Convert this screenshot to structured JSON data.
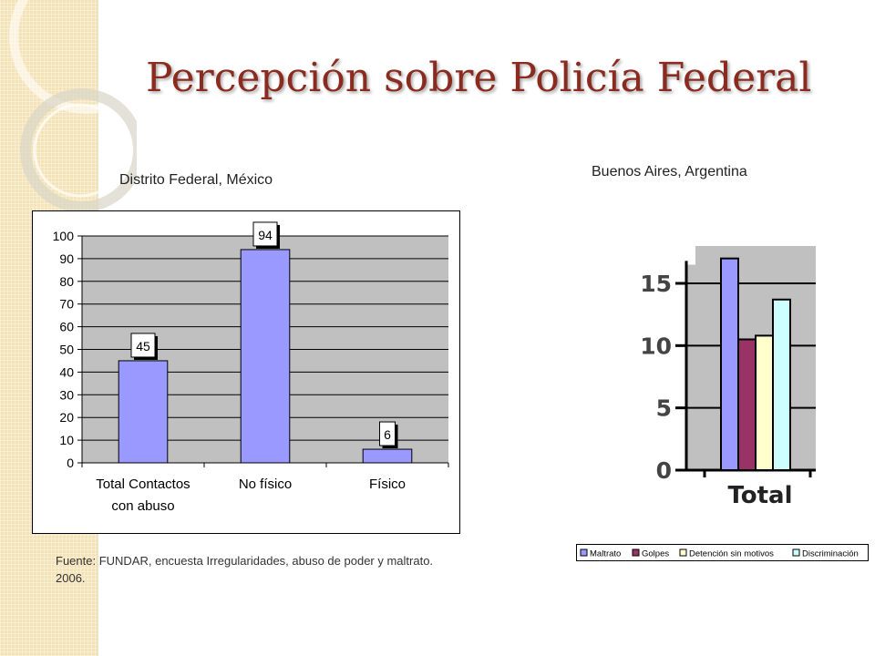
{
  "slide": {
    "title": "Percepción sobre Policía Federal",
    "source": "Fuente: FUNDAR, encuesta Irregularidades, abuso de poder y maltrato. 2006."
  },
  "chart_data": [
    {
      "type": "bar",
      "title": "Distrito Federal, México",
      "categories": [
        "Total Contactos con abuso",
        "No físico",
        "Físico"
      ],
      "values": [
        45,
        94,
        6
      ],
      "data_labels": [
        "45",
        "94",
        "6"
      ],
      "ylim": [
        0,
        100
      ],
      "yticks": [
        0,
        10,
        20,
        30,
        40,
        50,
        60,
        70,
        80,
        90,
        100
      ],
      "grid": true,
      "colors": {
        "bar": "#9999ff",
        "plot_bg": "#c0c0c0",
        "border": "#000000"
      }
    },
    {
      "type": "bar",
      "title": "Buenos Aires, Argentina",
      "categories": [
        "Total"
      ],
      "series": [
        {
          "name": "Maltrato",
          "values": [
            17
          ],
          "color": "#9999ff"
        },
        {
          "name": "Golpes",
          "values": [
            10.5
          ],
          "color": "#993366"
        },
        {
          "name": "Detención sin motivos",
          "values": [
            10.8
          ],
          "color": "#ffffcc"
        },
        {
          "name": "Discriminación",
          "values": [
            13.7
          ],
          "color": "#ccffff"
        }
      ],
      "yticks": [
        0,
        5,
        10,
        15
      ],
      "ylim": [
        0,
        18
      ],
      "legend": "bottom",
      "colors": {
        "plot_bg": "#c0c0c0"
      }
    }
  ]
}
